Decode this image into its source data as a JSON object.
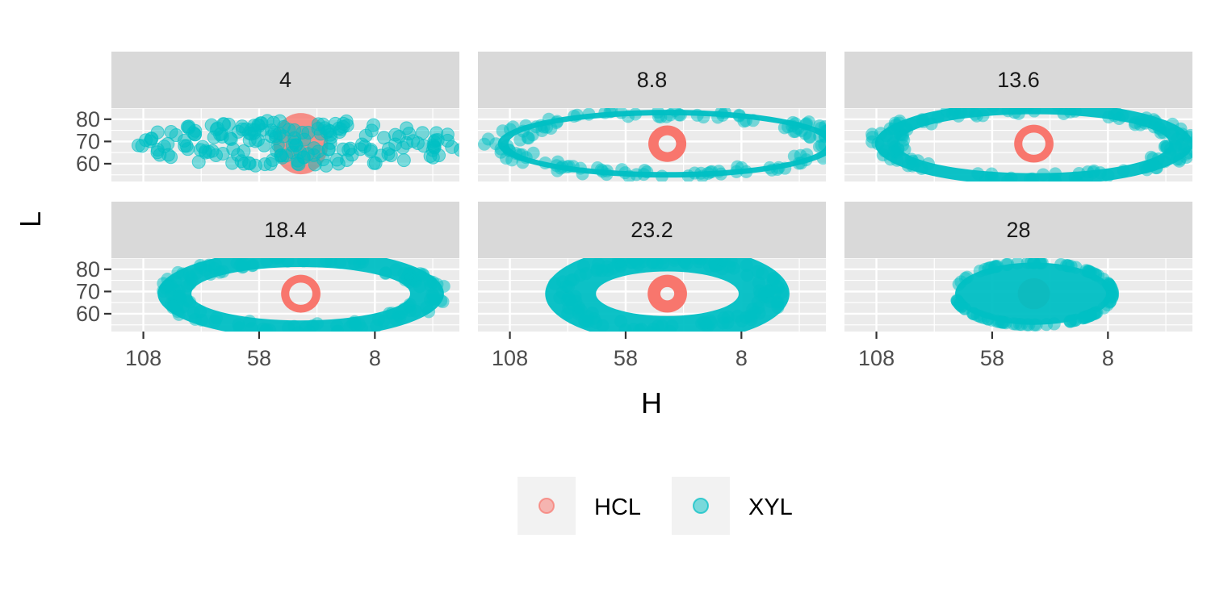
{
  "chart_data": {
    "type": "scatter",
    "xlabel": "H",
    "ylabel": "L",
    "x_reversed": true,
    "xlim": [
      121.8,
      -28.5
    ],
    "ylim": [
      52,
      85
    ],
    "x_ticks": [
      108,
      58,
      8
    ],
    "x_tick_labels": [
      "108",
      "58",
      "8"
    ],
    "y_ticks": [
      60,
      70,
      80
    ],
    "y_tick_labels": [
      "60",
      "70",
      "80"
    ],
    "grid": true,
    "legend": {
      "position": "bottom",
      "entries": [
        {
          "label": "HCL",
          "color": "#F8766D"
        },
        {
          "label": "XYL",
          "color": "#00BFC4"
        }
      ]
    },
    "series_colors": {
      "HCL": "#F8766D",
      "XYL": "#00BFC4"
    },
    "point_alpha": 0.5,
    "center": {
      "H": 40,
      "L": 69
    },
    "facets": [
      {
        "label": "4",
        "HCL": {
          "ring_outer": 3.7,
          "ring_inner": 0,
          "fill": 0.55
        },
        "XYL": {
          "rx": 72,
          "ry": 10,
          "shape": "scattered"
        }
      },
      {
        "label": "8.8",
        "HCL": {
          "ring_outer": 8.2,
          "ring_inner": 3.8
        },
        "XYL": {
          "rx": 72,
          "ry": 14,
          "thick": 2.5
        }
      },
      {
        "label": "13.6",
        "HCL": {
          "ring_outer": 8.5,
          "ring_inner": 5.0
        },
        "XYL": {
          "rx": 66,
          "ry": 16,
          "thick": 5.5
        }
      },
      {
        "label": "18.4",
        "HCL": {
          "ring_outer": 8.5,
          "ring_inner": 5.0
        },
        "XYL": {
          "rx": 58,
          "ry": 16,
          "thick": 8
        }
      },
      {
        "label": "23.2",
        "HCL": {
          "ring_outer": 8.5,
          "ring_inner": 3.0
        },
        "XYL": {
          "rx": 47,
          "ry": 16,
          "thick": 12
        }
      },
      {
        "label": "28",
        "HCL": {
          "ring_outer": 7.0,
          "ring_inner": 0
        },
        "XYL": {
          "rx": 34,
          "ry": 14,
          "thick": 34,
          "shape": "filled"
        }
      }
    ]
  }
}
